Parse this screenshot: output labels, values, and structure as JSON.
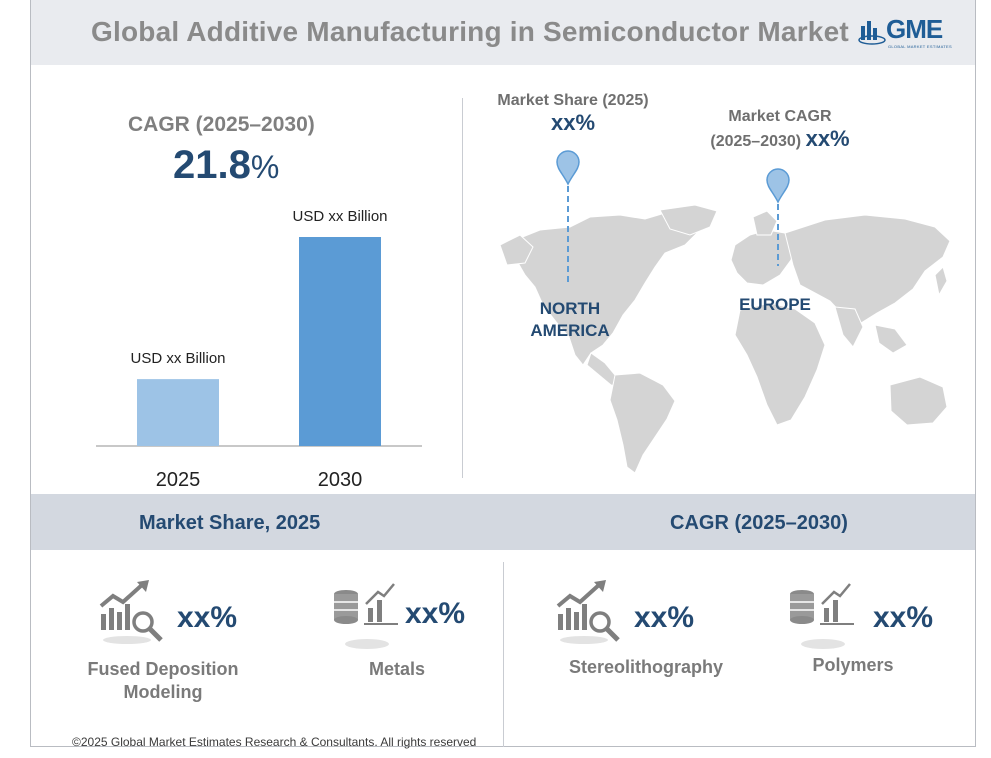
{
  "header": {
    "title": "Global Additive Manufacturing in Semiconductor Market",
    "logo_text": "GME",
    "logo_subtext": "GLOBAL MARKET ESTIMATES"
  },
  "cagr": {
    "label": "CAGR (2025–2030)",
    "value": "21.8",
    "unit": "%"
  },
  "chart_data": {
    "type": "bar",
    "categories": [
      "2025",
      "2030"
    ],
    "value_labels": [
      "USD xx Billion",
      "USD xx Billion"
    ],
    "relative_heights": [
      0.32,
      1.0
    ],
    "colors": [
      "#9dc3e6",
      "#5b9bd5"
    ]
  },
  "map": {
    "pins": [
      {
        "label": "Market Share (2025)",
        "value": "xx%"
      },
      {
        "label_line1": "Market CAGR",
        "label_line2": "(2025–2030)",
        "value": "xx%"
      }
    ],
    "regions": [
      {
        "line1": "NORTH",
        "line2": "AMERICA"
      },
      {
        "line1": "EUROPE",
        "line2": ""
      }
    ],
    "pin_color": "#9dc3e6"
  },
  "sections": {
    "left_title": "Market Share, 2025",
    "right_title": "CAGR (2025–2030)"
  },
  "segments": [
    {
      "icon": "growth-chart-magnifier-icon",
      "value": "xx%",
      "label_line1": "Fused Deposition",
      "label_line2": "Modeling"
    },
    {
      "icon": "coins-chart-icon",
      "value": "xx%",
      "label_line1": "Metals",
      "label_line2": ""
    },
    {
      "icon": "growth-chart-magnifier-icon",
      "value": "xx%",
      "label_line1": "Stereolithography",
      "label_line2": ""
    },
    {
      "icon": "coins-chart-icon",
      "value": "xx%",
      "label_line1": "Polymers",
      "label_line2": ""
    }
  ],
  "footer": "©2025 Global Market Estimates Research & Consultants. All rights reserved"
}
